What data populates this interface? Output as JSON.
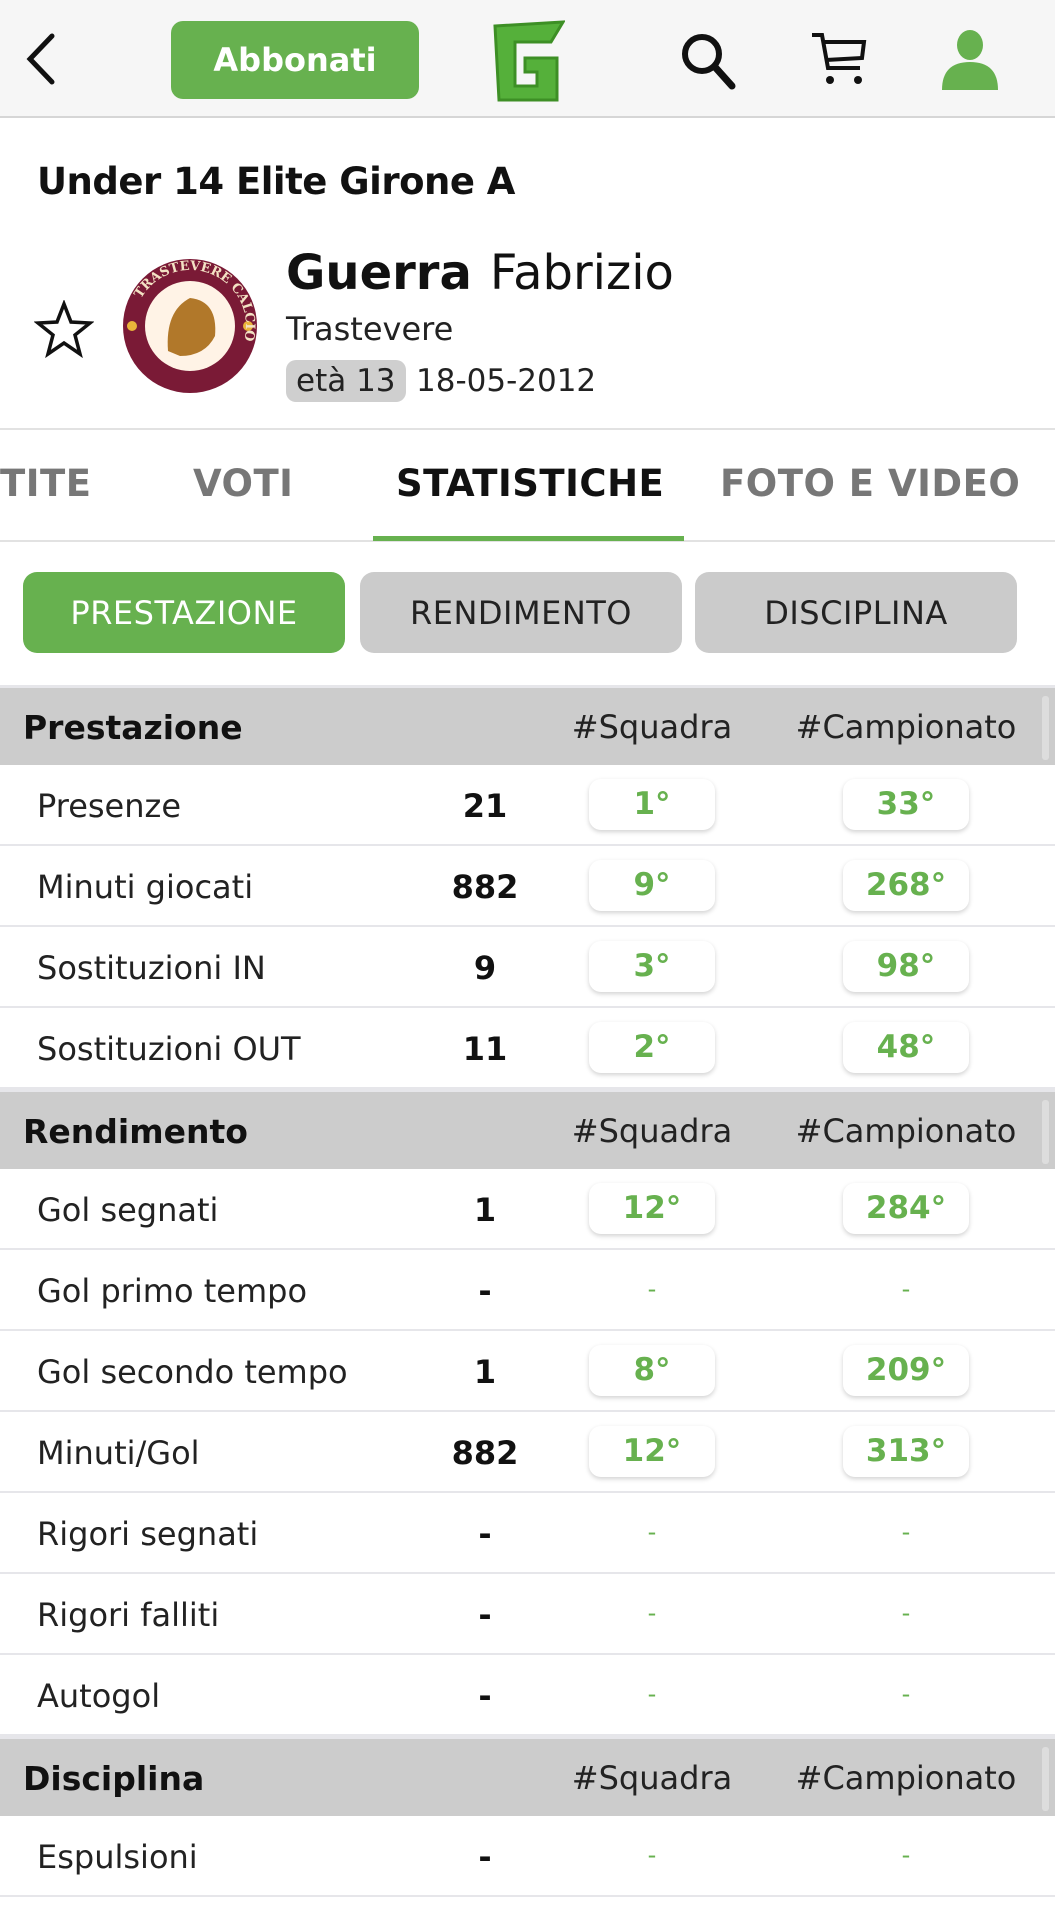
{
  "header": {
    "subscribe_label": "Abbonati",
    "logo": "G",
    "icons": [
      "back-icon",
      "search-icon",
      "cart-icon",
      "user-icon"
    ],
    "accent": "#67b14f"
  },
  "player": {
    "league": "Under 14 Elite  Girone A",
    "surname": "Guerra",
    "firstname": "Fabrizio",
    "team": "Trastevere",
    "age": "età 13",
    "dob": "18-05-2012",
    "badge_text": "TRASTEVERE CALCIO"
  },
  "tabs": [
    "TITE",
    "VOTI",
    "STATISTICHE",
    "FOTO E VIDEO"
  ],
  "active_tab": "STATISTICHE",
  "segments": [
    "PRESTAZIONE",
    "RENDIMENTO",
    "DISCIPLINA"
  ],
  "active_segment": "PRESTAZIONE",
  "sections": [
    {
      "title": "Prestazione",
      "col1": "#Squadra",
      "col2": "#Campionato",
      "rows": [
        {
          "label": "Presenze",
          "value": "21",
          "team": "1°",
          "league": "33°"
        },
        {
          "label": "Minuti giocati",
          "value": "882",
          "team": "9°",
          "league": "268°"
        },
        {
          "label": "Sostituzioni IN",
          "value": "9",
          "team": "3°",
          "league": "98°"
        },
        {
          "label": "Sostituzioni OUT",
          "value": "11",
          "team": "2°",
          "league": "48°"
        }
      ]
    },
    {
      "title": "Rendimento",
      "col1": "#Squadra",
      "col2": "#Campionato",
      "rows": [
        {
          "label": "Gol segnati",
          "value": "1",
          "team": "12°",
          "league": "284°"
        },
        {
          "label": "Gol primo tempo",
          "value": "-",
          "team": "-",
          "league": "-"
        },
        {
          "label": "Gol secondo tempo",
          "value": "1",
          "team": "8°",
          "league": "209°"
        },
        {
          "label": "Minuti/Gol",
          "value": "882",
          "team": "12°",
          "league": "313°"
        },
        {
          "label": "Rigori segnati",
          "value": "-",
          "team": "-",
          "league": "-"
        },
        {
          "label": "Rigori falliti",
          "value": "-",
          "team": "-",
          "league": "-"
        },
        {
          "label": "Autogol",
          "value": "-",
          "team": "-",
          "league": "-"
        }
      ]
    },
    {
      "title": "Disciplina",
      "col1": "#Squadra",
      "col2": "#Campionato",
      "rows": [
        {
          "label": "Espulsioni",
          "value": "-",
          "team": "-",
          "league": "-"
        }
      ]
    }
  ]
}
